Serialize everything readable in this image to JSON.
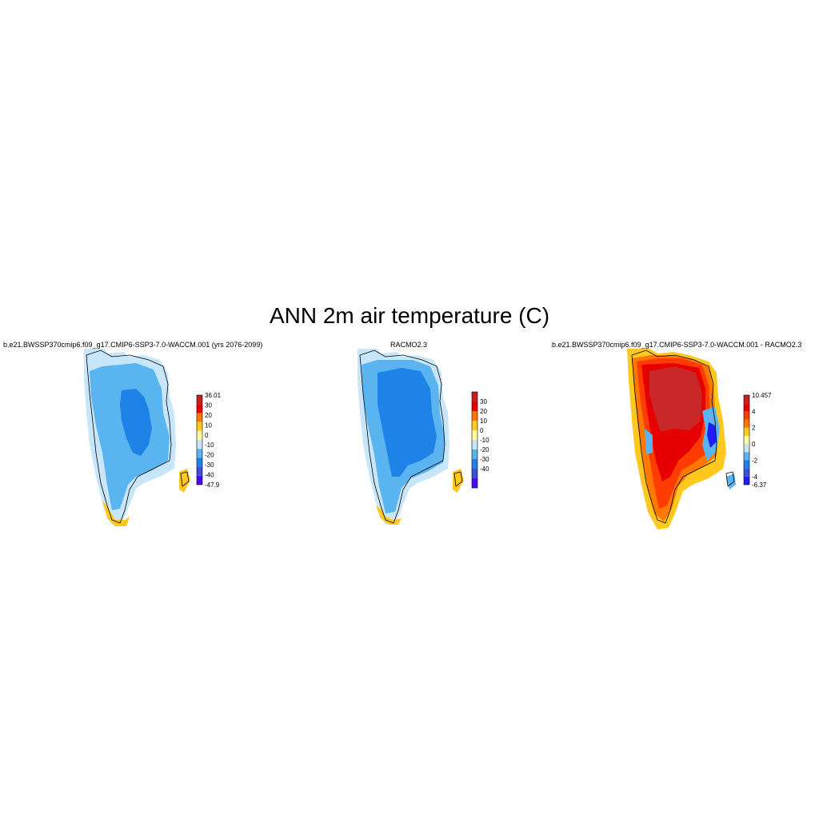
{
  "title": "ANN 2m air temperature (C)",
  "panels": [
    {
      "subtitle": "b.e21.BWSSP370cmip6.f09_g17.CMIP6-SSP3-7.0-WACCM.001 (yrs 2076-2099)",
      "colorbar": {
        "labels": [
          "36.01",
          "30",
          "20",
          "10",
          "0",
          "-10",
          "-20",
          "-30",
          "-40",
          "-47.9"
        ],
        "colors": [
          "#c81e1e",
          "#e60000",
          "#ff7800",
          "#ffc81e",
          "#fffaa0",
          "#c8e6fa",
          "#5ab4f0",
          "#1e82e6",
          "#3c50dc",
          "#4b0aff"
        ]
      }
    },
    {
      "subtitle": "RACMO2.3",
      "colorbar": {
        "labels": [
          "30",
          "20",
          "10",
          "0",
          "-10",
          "-20",
          "-30",
          "-40"
        ],
        "colors": [
          "#c81e1e",
          "#e60000",
          "#ff7800",
          "#ffc81e",
          "#fffaa0",
          "#c8e6fa",
          "#5ab4f0",
          "#1e82e6",
          "#3c50dc",
          "#4b0aff"
        ]
      }
    },
    {
      "subtitle": "b.e21.BWSSP370cmip6.f09_g17.CMIP6-SSP3-7.0-WACCM.001 - RACMO2.3",
      "colorbar": {
        "labels": [
          "10.457",
          "4",
          "2",
          "0",
          "-2",
          "-4",
          "-6.37"
        ],
        "colors": [
          "#c81e1e",
          "#e60000",
          "#ff3c00",
          "#ff7800",
          "#ffc81e",
          "#fffaa0",
          "#c8e6fa",
          "#5ab4f0",
          "#1e82e6",
          "#3c50dc",
          "#1e1eff"
        ]
      }
    }
  ]
}
